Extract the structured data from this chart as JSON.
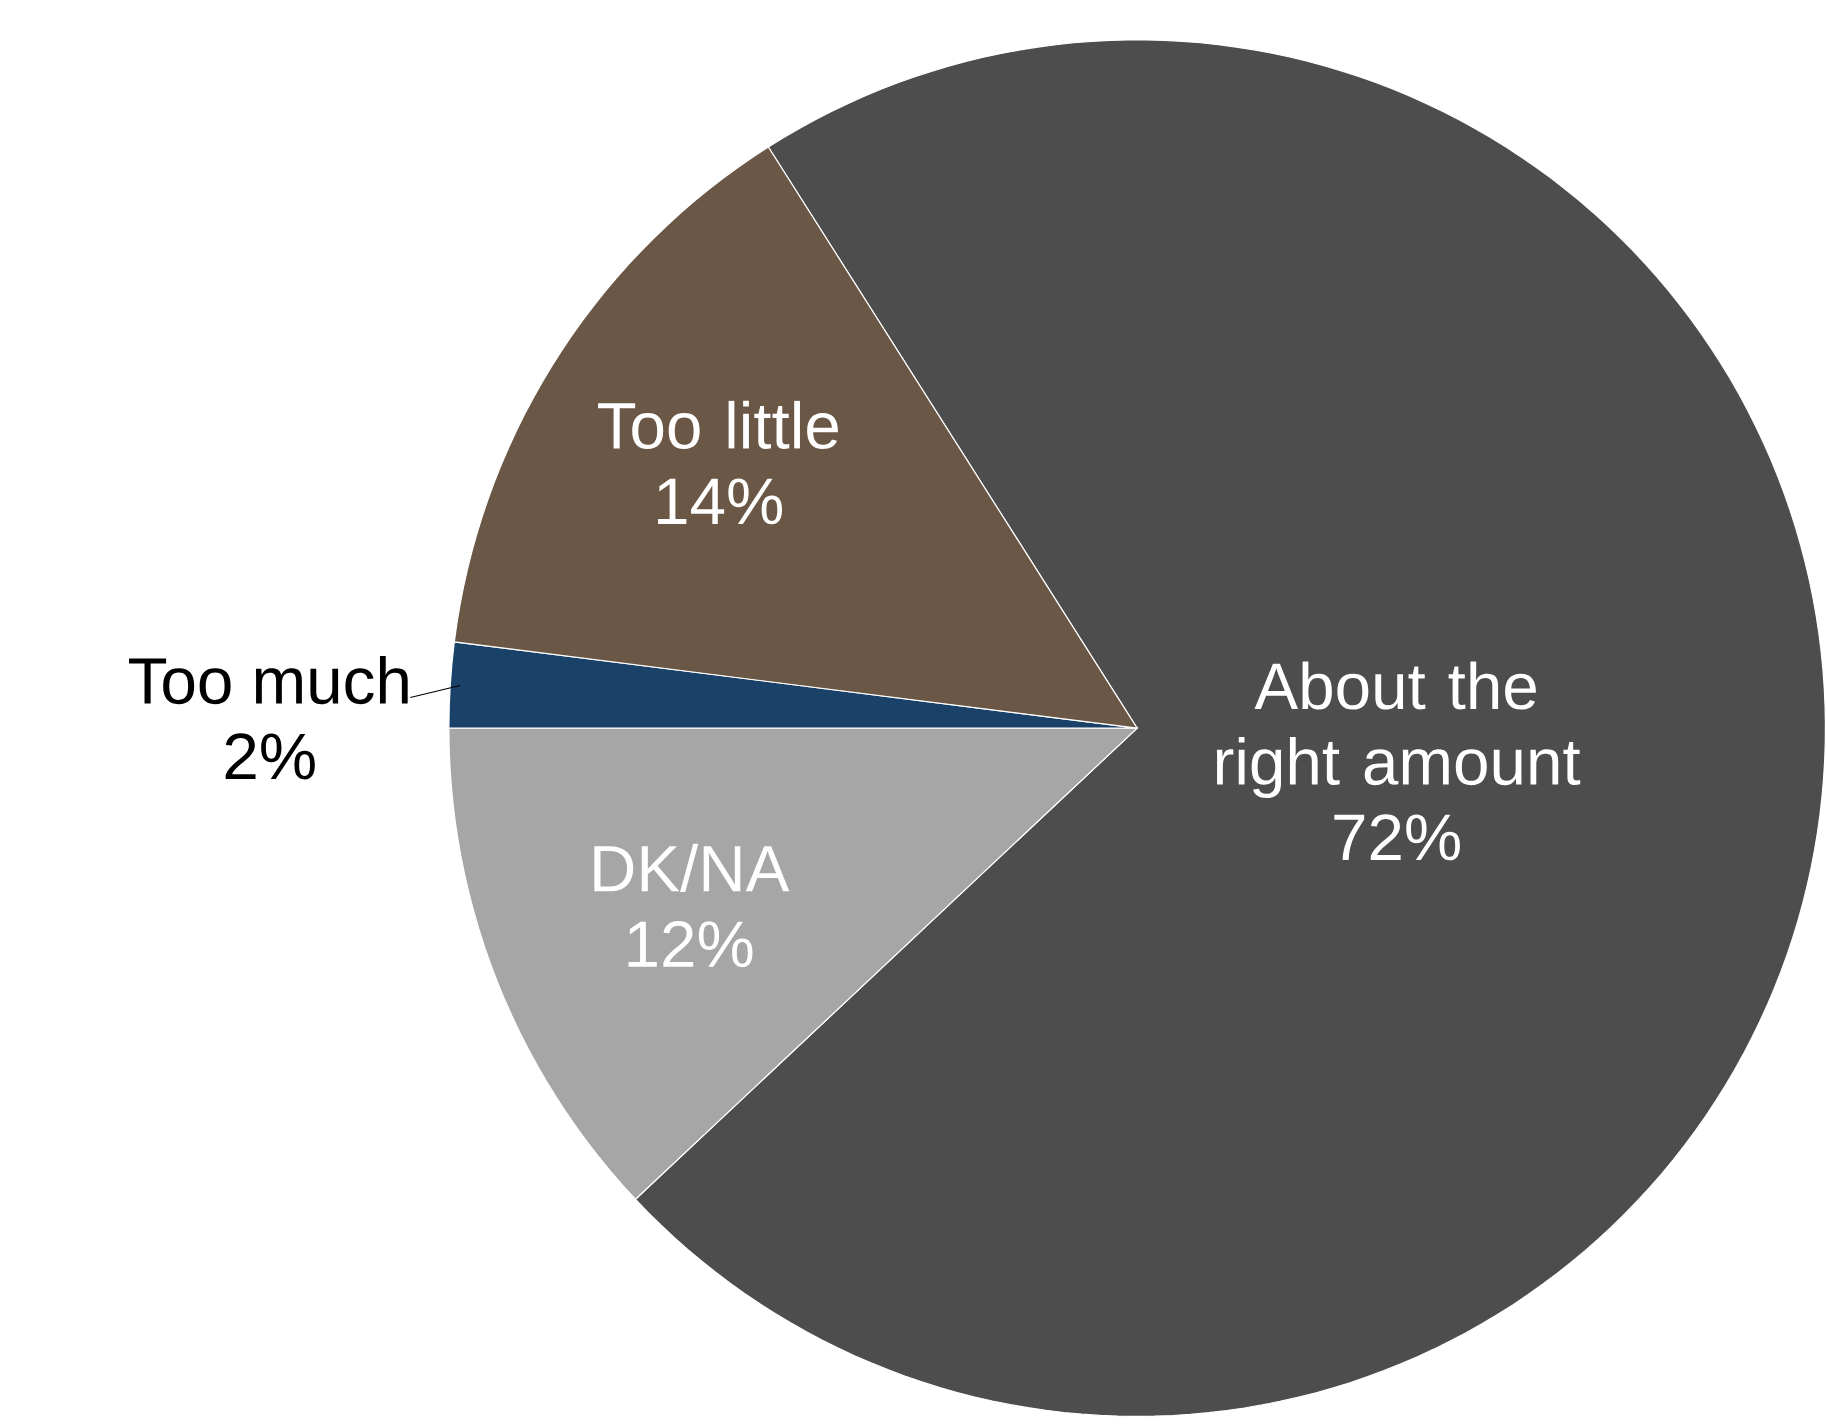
{
  "chart_data": {
    "type": "pie",
    "categories": [
      "About the right amount",
      "DK/NA",
      "Too much",
      "Too little"
    ],
    "values": [
      72,
      12,
      2,
      14
    ],
    "value_labels": [
      "72%",
      "12%",
      "2%",
      "14%"
    ],
    "colors": [
      "#4d4d4d",
      "#a6a6a6",
      "#1a4168",
      "#6b5746"
    ]
  }
}
